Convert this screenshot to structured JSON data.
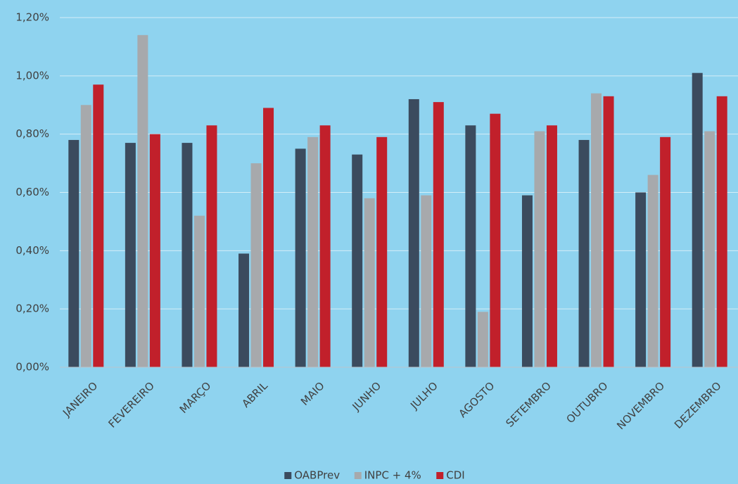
{
  "chart_data": {
    "type": "bar",
    "categories": [
      "JANEIRO",
      "FEVEREIRO",
      "MARÇO",
      "ABRIL",
      "MAIO",
      "JUNHO",
      "JULHO",
      "AGOSTO",
      "SETEMBRO",
      "OUTUBRO",
      "NOVEMBRO",
      "DEZEMBRO"
    ],
    "series": [
      {
        "name": "OABPrev",
        "color": "#3b4b5e",
        "values": [
          0.78,
          0.77,
          0.77,
          0.39,
          0.75,
          0.73,
          0.92,
          0.83,
          0.59,
          0.78,
          0.6,
          1.01
        ]
      },
      {
        "name": "INPC + 4%",
        "color": "#a7a9ac",
        "values": [
          0.9,
          1.14,
          0.52,
          0.7,
          0.79,
          0.58,
          0.59,
          0.19,
          0.81,
          0.94,
          0.66,
          0.81
        ]
      },
      {
        "name": "CDI",
        "color": "#c1202b",
        "values": [
          0.97,
          0.8,
          0.83,
          0.89,
          0.83,
          0.79,
          0.91,
          0.87,
          0.83,
          0.93,
          0.79,
          0.93
        ]
      }
    ],
    "ylim": [
      0,
      1.2
    ],
    "yticks": [
      {
        "value": 0,
        "label": "0,00%"
      },
      {
        "value": 0.2,
        "label": "0,20%"
      },
      {
        "value": 0.4,
        "label": "0,40%"
      },
      {
        "value": 0.6,
        "label": "0,60%"
      },
      {
        "value": 0.8,
        "label": "0,80%"
      },
      {
        "value": 1.0,
        "label": "1,00%"
      },
      {
        "value": 1.2,
        "label": "1,20%"
      }
    ],
    "grid": true,
    "legend": "bottom"
  }
}
